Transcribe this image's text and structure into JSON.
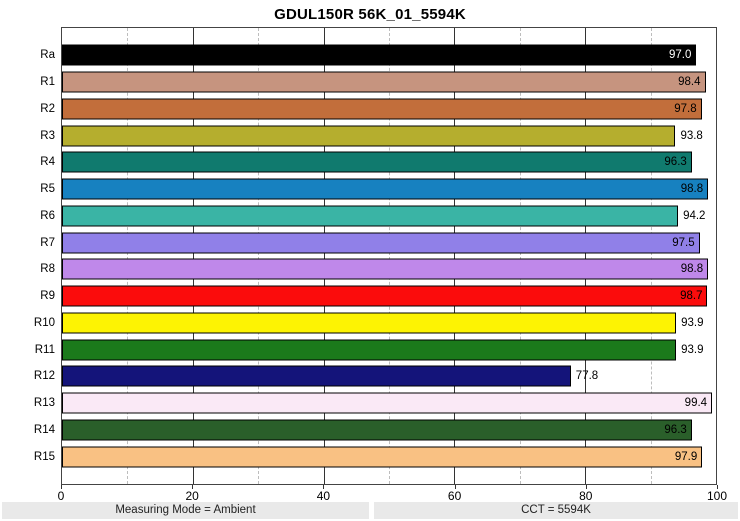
{
  "title": "GDUL150R 56K_01_5594K",
  "chart_data": {
    "type": "bar",
    "orientation": "horizontal",
    "title": "GDUL150R 56K_01_5594K",
    "categories": [
      "Ra",
      "R1",
      "R2",
      "R3",
      "R4",
      "R5",
      "R6",
      "R7",
      "R8",
      "R9",
      "R10",
      "R11",
      "R12",
      "R13",
      "R14",
      "R15"
    ],
    "values": [
      97.0,
      98.4,
      97.8,
      93.8,
      96.3,
      98.8,
      94.2,
      97.5,
      98.8,
      98.7,
      93.9,
      93.9,
      77.8,
      99.4,
      96.3,
      97.9
    ],
    "value_labels": [
      "97.0",
      "98.4",
      "97.8",
      "93.8",
      "96.3",
      "98.8",
      "94.2",
      "97.5",
      "98.8",
      "98.7",
      "93.9",
      "93.9",
      "77.8",
      "99.4",
      "96.3",
      "97.9"
    ],
    "bar_colors": [
      "#000000",
      "#c6947f",
      "#c26e3b",
      "#b5ae2e",
      "#107a6e",
      "#1781c0",
      "#3ab4a5",
      "#9080e8",
      "#bf88ea",
      "#fb0c0c",
      "#fdf303",
      "#1b7a1b",
      "#14147a",
      "#fae9f6",
      "#2a5f2a",
      "#f9c183"
    ],
    "value_text_colors": [
      "#ffffff",
      "#000000",
      "#000000",
      "#000000",
      "#000000",
      "#000000",
      "#000000",
      "#000000",
      "#000000",
      "#000000",
      "#000000",
      "#000000",
      "#000000",
      "#000000",
      "#000000",
      "#000000"
    ],
    "xlim": [
      0,
      100
    ],
    "x_major_ticks": [
      0,
      20,
      40,
      60,
      80,
      100
    ],
    "x_major_tick_labels": [
      "0",
      "20",
      "40",
      "60",
      "80",
      "100"
    ],
    "x_minor_gridlines": [
      10,
      30,
      50,
      70,
      90
    ],
    "grid": true,
    "legend": false,
    "xlabel": "",
    "ylabel": ""
  },
  "footer": {
    "left": "Measuring Mode = Ambient",
    "right": "CCT = 5594K"
  },
  "colors": {
    "background": "#ffffff",
    "plot_border": "#444444",
    "grid_major": "#333333",
    "grid_minor": "#bdbdbd",
    "bar_border": "#000000",
    "footer_bg": "#e9e9e9"
  }
}
